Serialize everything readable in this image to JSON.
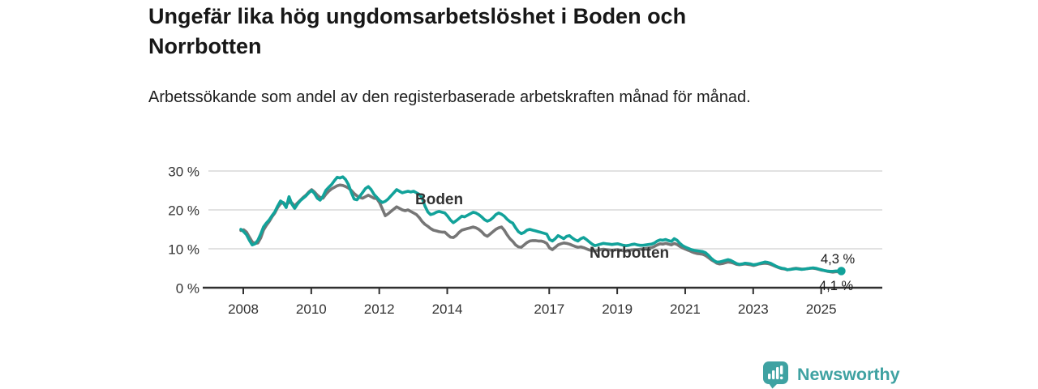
{
  "header": {
    "title": "Ungefär lika hög ungdomsarbetslöshet i Boden och Norrbotten",
    "subtitle": "Arbetssökande som andel av den registerbaserade arbetskraften månad för månad."
  },
  "branding": {
    "logo_text": "Newsworthy",
    "logo_icon": "bar-chart-speech-bubble-icon",
    "brand_color": "#3fa2a2"
  },
  "chart_data": {
    "type": "line",
    "title": "Ungefär lika hög ungdomsarbetslöshet i Boden och Norrbotten",
    "subtitle": "Arbetssökande som andel av den registerbaserade arbetskraften månad för månad.",
    "x_unit": "month",
    "x_start": "2008-01",
    "x_end": "2025-09",
    "ylim": [
      0,
      30
    ],
    "grid": "horizontal",
    "axis_color": "#2f2f2f",
    "grid_color": "#d9d9d9",
    "y_ticks": [
      {
        "label": "30 %",
        "value": 30
      },
      {
        "label": "20 %",
        "value": 20
      },
      {
        "label": "10 %",
        "value": 10
      },
      {
        "label": "0 %",
        "value": 0
      }
    ],
    "x_ticks": [
      {
        "label": "2008",
        "year": 2008
      },
      {
        "label": "2010",
        "year": 2010
      },
      {
        "label": "2012",
        "year": 2012
      },
      {
        "label": "2014",
        "year": 2014
      },
      {
        "label": "2017",
        "year": 2017
      },
      {
        "label": "2019",
        "year": 2019
      },
      {
        "label": "2021",
        "year": 2021
      },
      {
        "label": "2023",
        "year": 2023
      },
      {
        "label": "2025",
        "year": 2025
      }
    ],
    "series": [
      {
        "name": "Boden",
        "color": "#12a29a",
        "end_label": "4,3 %",
        "end_value": 4.3,
        "values": [
          15.0,
          14.4,
          13.6,
          12.2,
          11.0,
          11.3,
          12.2,
          13.8,
          15.6,
          16.6,
          17.4,
          18.5,
          19.5,
          21.0,
          22.3,
          21.8,
          20.6,
          23.4,
          21.5,
          20.4,
          21.5,
          22.4,
          23.0,
          23.6,
          24.4,
          25.0,
          24.2,
          23.0,
          22.5,
          23.5,
          25.0,
          25.8,
          26.5,
          27.5,
          28.4,
          28.2,
          28.5,
          27.8,
          26.5,
          24.5,
          22.8,
          22.6,
          23.5,
          24.5,
          25.5,
          26.0,
          25.2,
          24.0,
          23.2,
          22.4,
          21.9,
          22.2,
          22.8,
          23.6,
          24.4,
          25.2,
          24.8,
          24.4,
          24.6,
          24.8,
          24.6,
          24.8,
          24.4,
          24.0,
          23.0,
          21.0,
          19.5,
          18.8,
          19.0,
          19.4,
          19.6,
          19.4,
          19.2,
          18.4,
          17.4,
          16.7,
          17.2,
          17.8,
          18.4,
          18.2,
          18.6,
          19.0,
          19.4,
          19.2,
          18.8,
          18.2,
          17.5,
          17.1,
          17.4,
          18.0,
          18.8,
          19.2,
          18.9,
          18.4,
          17.6,
          17.0,
          16.6,
          15.4,
          14.4,
          13.9,
          14.2,
          14.8,
          15.0,
          14.8,
          14.6,
          14.4,
          14.2,
          14.0,
          13.8,
          12.4,
          12.0,
          12.6,
          13.4,
          13.0,
          12.6,
          13.2,
          13.4,
          12.8,
          12.3,
          12.0,
          12.6,
          12.9,
          12.4,
          11.8,
          11.2,
          10.8,
          11.0,
          11.2,
          11.4,
          11.3,
          11.2,
          11.1,
          11.2,
          11.3,
          11.1,
          10.9,
          10.8,
          10.9,
          11.1,
          11.2,
          11.0,
          10.9,
          10.9,
          11.0,
          11.1,
          11.2,
          11.5,
          12.0,
          12.3,
          12.2,
          12.4,
          12.1,
          11.9,
          12.6,
          12.2,
          11.4,
          10.8,
          10.4,
          10.1,
          9.8,
          9.6,
          9.5,
          9.4,
          9.3,
          9.0,
          8.4,
          7.6,
          7.0,
          6.6,
          6.6,
          6.8,
          7.0,
          7.2,
          7.0,
          6.6,
          6.2,
          6.0,
          6.1,
          6.3,
          6.2,
          6.1,
          5.9,
          6.0,
          6.2,
          6.4,
          6.6,
          6.5,
          6.3,
          5.9,
          5.5,
          5.2,
          5.0,
          4.9,
          4.6,
          4.7,
          4.8,
          4.9,
          4.8,
          4.7,
          4.8,
          4.9,
          5.0,
          5.1,
          5.0,
          4.8,
          4.6,
          4.4,
          4.3,
          4.2,
          4.2,
          4.3,
          4.3,
          4.3
        ]
      },
      {
        "name": "Norrbotten",
        "color": "#767676",
        "end_label": "4,1 %",
        "end_value": 4.1,
        "values": [
          14.7,
          14.9,
          14.3,
          13.0,
          11.8,
          11.4,
          11.5,
          12.8,
          14.8,
          16.0,
          17.0,
          18.2,
          19.2,
          20.6,
          21.6,
          21.9,
          21.2,
          22.0,
          21.8,
          21.0,
          21.8,
          22.5,
          23.2,
          23.8,
          24.6,
          25.2,
          24.6,
          23.8,
          23.2,
          23.0,
          24.0,
          24.8,
          25.4,
          25.8,
          26.2,
          26.4,
          26.3,
          26.0,
          25.6,
          25.0,
          24.2,
          23.6,
          23.2,
          23.0,
          23.4,
          23.8,
          23.4,
          23.0,
          22.9,
          21.8,
          20.2,
          18.5,
          19.0,
          19.6,
          20.2,
          20.8,
          20.4,
          20.0,
          19.8,
          20.0,
          19.6,
          19.2,
          18.8,
          18.0,
          17.0,
          16.3,
          15.8,
          15.2,
          14.8,
          14.6,
          14.4,
          14.3,
          14.3,
          13.6,
          13.0,
          12.9,
          13.4,
          14.2,
          14.8,
          15.0,
          15.2,
          15.4,
          15.6,
          15.4,
          15.0,
          14.4,
          13.6,
          13.2,
          13.8,
          14.4,
          15.0,
          15.4,
          15.6,
          14.8,
          13.6,
          12.6,
          11.9,
          11.0,
          10.5,
          10.4,
          11.0,
          11.6,
          12.0,
          12.1,
          12.1,
          12.0,
          12.0,
          11.8,
          11.4,
          10.2,
          9.8,
          10.4,
          11.0,
          11.3,
          11.5,
          11.4,
          11.2,
          10.9,
          10.6,
          10.4,
          10.5,
          10.3,
          10.0,
          9.7,
          9.5,
          9.4,
          9.6,
          9.8,
          9.9,
          9.8,
          9.7,
          9.6,
          9.7,
          9.8,
          9.6,
          9.5,
          9.4,
          9.5,
          9.7,
          9.8,
          9.8,
          9.9,
          10.0,
          10.1,
          10.2,
          10.3,
          10.6,
          11.0,
          11.3,
          11.2,
          11.4,
          11.2,
          11.0,
          11.4,
          11.1,
          10.6,
          10.2,
          9.9,
          9.6,
          9.3,
          9.0,
          8.8,
          8.7,
          8.6,
          8.3,
          7.8,
          7.2,
          6.8,
          6.3,
          6.1,
          6.2,
          6.4,
          6.6,
          6.5,
          6.3,
          6.0,
          5.9,
          6.0,
          6.1,
          6.0,
          5.9,
          5.7,
          5.9,
          6.1,
          6.2,
          6.3,
          6.2,
          6.0,
          5.7,
          5.4,
          5.1,
          4.9,
          4.8,
          4.6,
          4.7,
          4.9,
          5.0,
          4.9,
          4.8,
          4.8,
          4.9,
          5.0,
          5.0,
          4.9,
          4.7,
          4.5,
          4.4,
          4.2,
          4.1,
          4.0,
          4.1,
          4.1,
          4.1
        ]
      }
    ]
  }
}
